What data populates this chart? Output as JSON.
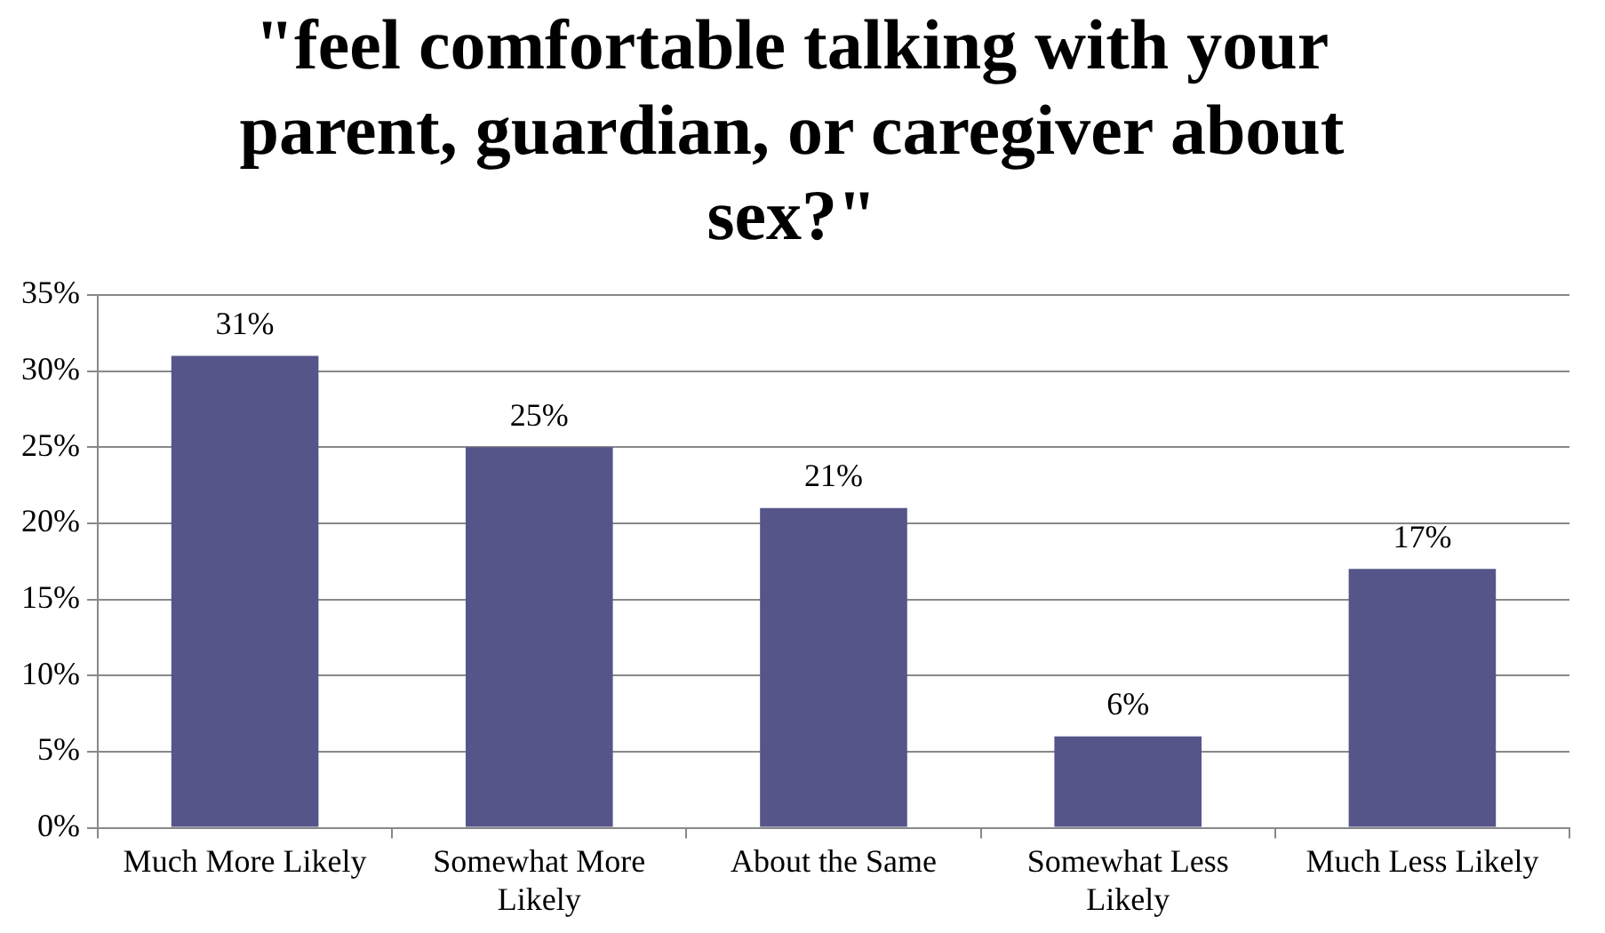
{
  "chart_data": {
    "type": "bar",
    "title": "\"feel comfortable talking with your parent, guardian, or caregiver about sex?\"",
    "categories": [
      "Much More Likely",
      "Somewhat More Likely",
      "About the Same",
      "Somewhat Less Likely",
      "Much Less Likely"
    ],
    "values": [
      31,
      25,
      21,
      6,
      17
    ],
    "value_labels": [
      "31%",
      "25%",
      "21%",
      "6%",
      "17%"
    ],
    "color": "#55558a",
    "ylim": [
      0,
      35
    ],
    "yticks": [
      {
        "value": 0,
        "label": "0%"
      },
      {
        "value": 5,
        "label": "5%"
      },
      {
        "value": 10,
        "label": "10%"
      },
      {
        "value": 15,
        "label": "15%"
      },
      {
        "value": 20,
        "label": "20%"
      },
      {
        "value": 25,
        "label": "25%"
      },
      {
        "value": 30,
        "label": "30%"
      },
      {
        "value": 35,
        "label": "35%"
      }
    ],
    "grid": "y",
    "legend": false
  }
}
